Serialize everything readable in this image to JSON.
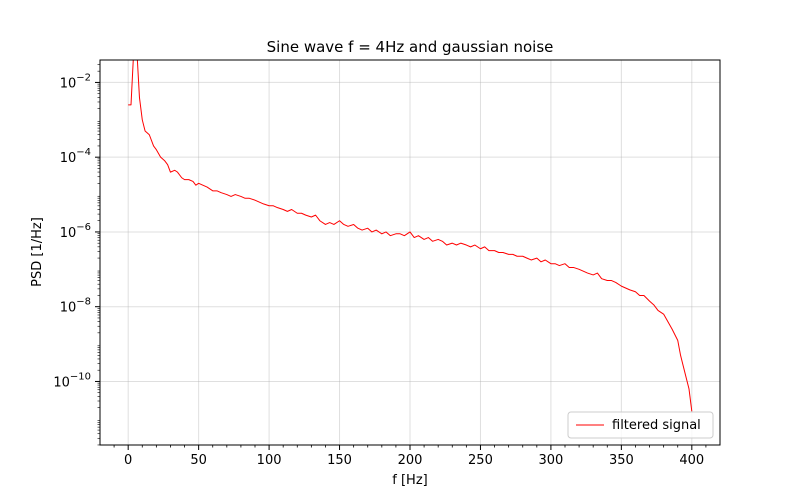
{
  "chart_data": {
    "type": "line",
    "title": "Sine wave f = 4Hz and gaussian noise",
    "xlabel": "f [Hz]",
    "ylabel": "PSD [1/Hz]",
    "xlim": [
      -20,
      420
    ],
    "ylim_log10": [
      -11.7,
      -1.4
    ],
    "y_scale": "log",
    "grid": true,
    "legend_position": "lower-right",
    "x_ticks": [
      0,
      50,
      100,
      150,
      200,
      250,
      300,
      350,
      400
    ],
    "x_tick_labels": [
      "0",
      "50",
      "100",
      "150",
      "200",
      "250",
      "300",
      "350",
      "400"
    ],
    "y_ticks_log10": [
      -10,
      -8,
      -6,
      -4,
      -2
    ],
    "y_tick_mantissa": "10",
    "y_tick_exponents": [
      "−10",
      "−8",
      "−6",
      "−4",
      "−2"
    ],
    "series": [
      {
        "name": "filtered signal",
        "color": "#ff0000",
        "x": [
          0,
          2,
          4,
          6,
          8,
          10,
          12,
          15,
          18,
          20,
          23,
          26,
          28,
          30,
          33,
          35,
          38,
          40,
          43,
          46,
          48,
          50,
          53,
          56,
          58,
          60,
          63,
          66,
          70,
          73,
          76,
          80,
          83,
          86,
          90,
          93,
          96,
          100,
          103,
          106,
          110,
          113,
          116,
          120,
          123,
          126,
          130,
          133,
          136,
          140,
          143,
          146,
          150,
          153,
          156,
          160,
          163,
          166,
          170,
          173,
          176,
          180,
          183,
          186,
          190,
          193,
          196,
          200,
          203,
          206,
          210,
          213,
          216,
          220,
          223,
          226,
          230,
          233,
          236,
          240,
          243,
          246,
          250,
          253,
          256,
          260,
          263,
          266,
          270,
          273,
          276,
          280,
          283,
          286,
          290,
          293,
          296,
          300,
          303,
          306,
          310,
          313,
          316,
          320,
          323,
          326,
          330,
          333,
          336,
          340,
          343,
          346,
          350,
          353,
          356,
          360,
          363,
          366,
          370,
          373,
          376,
          380,
          383,
          386,
          390,
          392,
          394,
          396,
          398,
          400
        ],
        "y_log10": [
          -2.6,
          -2.6,
          -1.1,
          -1.05,
          -2.4,
          -3.0,
          -3.3,
          -3.4,
          -3.7,
          -3.8,
          -4.0,
          -4.1,
          -4.2,
          -4.4,
          -4.35,
          -4.4,
          -4.55,
          -4.6,
          -4.6,
          -4.65,
          -4.75,
          -4.7,
          -4.75,
          -4.8,
          -4.85,
          -4.9,
          -4.9,
          -4.95,
          -5.0,
          -5.05,
          -5.0,
          -5.05,
          -5.1,
          -5.1,
          -5.15,
          -5.2,
          -5.25,
          -5.3,
          -5.3,
          -5.35,
          -5.4,
          -5.45,
          -5.4,
          -5.5,
          -5.5,
          -5.55,
          -5.6,
          -5.55,
          -5.7,
          -5.8,
          -5.75,
          -5.8,
          -5.7,
          -5.8,
          -5.85,
          -5.8,
          -5.9,
          -5.95,
          -5.9,
          -6.0,
          -5.95,
          -6.05,
          -6.0,
          -6.1,
          -6.05,
          -6.05,
          -6.1,
          -6.0,
          -6.15,
          -6.1,
          -6.2,
          -6.15,
          -6.25,
          -6.2,
          -6.25,
          -6.35,
          -6.3,
          -6.35,
          -6.3,
          -6.35,
          -6.4,
          -6.35,
          -6.45,
          -6.4,
          -6.5,
          -6.5,
          -6.55,
          -6.55,
          -6.6,
          -6.6,
          -6.65,
          -6.65,
          -6.7,
          -6.75,
          -6.7,
          -6.8,
          -6.75,
          -6.85,
          -6.85,
          -6.9,
          -6.85,
          -6.95,
          -6.95,
          -7.0,
          -7.05,
          -7.1,
          -7.15,
          -7.1,
          -7.25,
          -7.3,
          -7.3,
          -7.35,
          -7.45,
          -7.5,
          -7.55,
          -7.6,
          -7.7,
          -7.7,
          -7.85,
          -7.95,
          -8.1,
          -8.2,
          -8.4,
          -8.6,
          -8.9,
          -9.3,
          -9.6,
          -9.9,
          -10.2,
          -10.8
        ]
      }
    ]
  }
}
